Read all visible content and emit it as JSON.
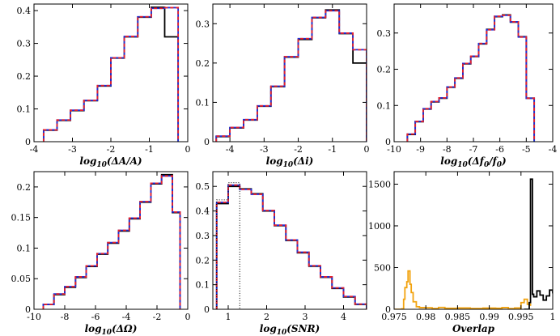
{
  "figure": {
    "description_free": true
  },
  "chart_data": [
    {
      "type": "histogram",
      "xlabel": "log10(ΔA/A)",
      "xlabel_parts": {
        "pre": "log",
        "sub": "10",
        "post": "(ΔA/A)"
      },
      "xlim": [
        -4,
        0
      ],
      "ylim": [
        0,
        0.42
      ],
      "xticks": [
        -4,
        -3,
        -2,
        -1,
        0
      ],
      "xticklabels": [
        "-4",
        "-3",
        "-2",
        "-1",
        "0"
      ],
      "yticks": [
        0,
        0.1,
        0.2,
        0.3,
        0.4
      ],
      "yticklabels": [
        "0",
        "0.1",
        "0.2",
        "0.3",
        "0.4"
      ],
      "series": [
        {
          "name": "black-solid",
          "color": "#000000",
          "dash": "",
          "edges": [
            -3.75,
            -3.4,
            -3.05,
            -2.7,
            -2.35,
            -2.0,
            -1.65,
            -1.3,
            -0.95,
            -0.6,
            -0.25
          ],
          "values": [
            0.035,
            0.065,
            0.095,
            0.125,
            0.17,
            0.255,
            0.32,
            0.38,
            0.41,
            0.32
          ]
        },
        {
          "name": "blue-solid",
          "color": "#1f2fd8",
          "dash": "",
          "edges": [
            -3.75,
            -3.4,
            -3.05,
            -2.7,
            -2.35,
            -2.0,
            -1.65,
            -1.3,
            -0.95,
            -0.6,
            -0.25
          ],
          "values": [
            0.036,
            0.066,
            0.096,
            0.126,
            0.171,
            0.256,
            0.321,
            0.381,
            0.407,
            0.409
          ]
        },
        {
          "name": "red-dashed",
          "color": "#e8202a",
          "dash": "4,3",
          "edges": [
            -3.75,
            -3.4,
            -3.05,
            -2.7,
            -2.35,
            -2.0,
            -1.65,
            -1.3,
            -0.95,
            -0.6,
            -0.25
          ],
          "values": [
            0.036,
            0.066,
            0.096,
            0.126,
            0.171,
            0.256,
            0.321,
            0.381,
            0.407,
            0.409
          ]
        }
      ]
    },
    {
      "type": "histogram",
      "xlabel": "log10(Δi)",
      "xlabel_parts": {
        "pre": "log",
        "sub": "10",
        "post": "(Δi)"
      },
      "xlim": [
        -4.5,
        0
      ],
      "ylim": [
        0,
        0.35
      ],
      "xticks": [
        -4,
        -3,
        -2,
        -1,
        0
      ],
      "xticklabels": [
        "-4",
        "-3",
        "-2",
        "-1",
        "0"
      ],
      "yticks": [
        0,
        0.1,
        0.2,
        0.3
      ],
      "yticklabels": [
        "0",
        "0.1",
        "0.2",
        "0.3"
      ],
      "series": [
        {
          "name": "black-solid",
          "color": "#000000",
          "dash": "",
          "edges": [
            -4.4,
            -4.0,
            -3.6,
            -3.2,
            -2.8,
            -2.4,
            -2.0,
            -1.6,
            -1.2,
            -0.8,
            -0.4,
            0
          ],
          "values": [
            0.013,
            0.035,
            0.055,
            0.09,
            0.14,
            0.215,
            0.26,
            0.315,
            0.335,
            0.275,
            0.2
          ]
        },
        {
          "name": "blue-solid",
          "color": "#1f2fd8",
          "dash": "",
          "edges": [
            -4.4,
            -4.0,
            -3.6,
            -3.2,
            -2.8,
            -2.4,
            -2.0,
            -1.6,
            -1.2,
            -0.8,
            -0.4,
            0
          ],
          "values": [
            0.014,
            0.036,
            0.056,
            0.091,
            0.141,
            0.216,
            0.262,
            0.316,
            0.333,
            0.276,
            0.234
          ]
        },
        {
          "name": "red-dashed",
          "color": "#e8202a",
          "dash": "4,3",
          "edges": [
            -4.4,
            -4.0,
            -3.6,
            -3.2,
            -2.8,
            -2.4,
            -2.0,
            -1.6,
            -1.2,
            -0.8,
            -0.4,
            0
          ],
          "values": [
            0.014,
            0.036,
            0.056,
            0.091,
            0.141,
            0.216,
            0.262,
            0.316,
            0.333,
            0.276,
            0.234
          ]
        }
      ]
    },
    {
      "type": "histogram",
      "xlabel": "log10(Δf0/f0)",
      "xlabel_parts": {
        "pre": "log",
        "sub": "10",
        "post": "(Δf",
        "sub2": "0",
        "post2": "/f",
        "sub3": "0",
        "post3": ")"
      },
      "xlim": [
        -10,
        -4
      ],
      "ylim": [
        0,
        0.38
      ],
      "xticks": [
        -10,
        -9,
        -8,
        -7,
        -6,
        -5,
        -4
      ],
      "xticklabels": [
        "-10",
        "-9",
        "-8",
        "-7",
        "-6",
        "-5",
        "-4"
      ],
      "yticks": [
        0,
        0.1,
        0.2,
        0.3
      ],
      "yticklabels": [
        "0",
        "0.1",
        "0.2",
        "0.3"
      ],
      "series": [
        {
          "name": "black-solid",
          "color": "#000000",
          "dash": "",
          "edges": [
            -9.5,
            -9.2,
            -8.9,
            -8.6,
            -8.3,
            -8.0,
            -7.7,
            -7.4,
            -7.1,
            -6.8,
            -6.5,
            -6.2,
            -5.9,
            -5.6,
            -5.3,
            -5.0,
            -4.7
          ],
          "values": [
            0.02,
            0.055,
            0.09,
            0.11,
            0.12,
            0.15,
            0.175,
            0.215,
            0.235,
            0.27,
            0.31,
            0.345,
            0.35,
            0.33,
            0.29,
            0.12
          ]
        },
        {
          "name": "blue-solid",
          "color": "#1f2fd8",
          "dash": "",
          "edges": [
            -9.5,
            -9.2,
            -8.9,
            -8.6,
            -8.3,
            -8.0,
            -7.7,
            -7.4,
            -7.1,
            -6.8,
            -6.5,
            -6.2,
            -5.9,
            -5.6,
            -5.3,
            -5.0,
            -4.7
          ],
          "values": [
            0.021,
            0.056,
            0.091,
            0.111,
            0.121,
            0.151,
            0.176,
            0.216,
            0.236,
            0.271,
            0.309,
            0.346,
            0.349,
            0.331,
            0.289,
            0.12
          ]
        },
        {
          "name": "red-dashed",
          "color": "#e8202a",
          "dash": "4,3",
          "edges": [
            -9.5,
            -9.2,
            -8.9,
            -8.6,
            -8.3,
            -8.0,
            -7.7,
            -7.4,
            -7.1,
            -6.8,
            -6.5,
            -6.2,
            -5.9,
            -5.6,
            -5.3,
            -5.0,
            -4.7
          ],
          "values": [
            0.021,
            0.056,
            0.091,
            0.111,
            0.121,
            0.151,
            0.176,
            0.216,
            0.236,
            0.271,
            0.309,
            0.346,
            0.349,
            0.331,
            0.289,
            0.12
          ]
        }
      ]
    },
    {
      "type": "histogram",
      "xlabel": "log10(ΔΩ)",
      "xlabel_parts": {
        "pre": "log",
        "sub": "10",
        "post": "(ΔΩ)"
      },
      "xlim": [
        -10,
        0
      ],
      "ylim": [
        0,
        0.225
      ],
      "xticks": [
        -10,
        -8,
        -6,
        -4,
        -2,
        0
      ],
      "xticklabels": [
        "-10",
        "-8",
        "-6",
        "-4",
        "-2",
        "0"
      ],
      "yticks": [
        0,
        0.05,
        0.1,
        0.15,
        0.2
      ],
      "yticklabels": [
        "0",
        "0.05",
        "0.1",
        "0.15",
        "0.2"
      ],
      "series": [
        {
          "name": "black-solid",
          "color": "#000000",
          "dash": "",
          "edges": [
            -9.4,
            -8.7,
            -8.0,
            -7.3,
            -6.6,
            -5.9,
            -5.2,
            -4.5,
            -3.8,
            -3.1,
            -2.4,
            -1.7,
            -1.0,
            -0.5
          ],
          "values": [
            0.008,
            0.024,
            0.036,
            0.052,
            0.07,
            0.09,
            0.108,
            0.128,
            0.148,
            0.175,
            0.205,
            0.22,
            0.158
          ]
        },
        {
          "name": "blue-solid",
          "color": "#1f2fd8",
          "dash": "",
          "edges": [
            -9.4,
            -8.7,
            -8.0,
            -7.3,
            -6.6,
            -5.9,
            -5.2,
            -4.5,
            -3.8,
            -3.1,
            -2.4,
            -1.7,
            -1.0,
            -0.5
          ],
          "values": [
            0.008,
            0.025,
            0.037,
            0.053,
            0.071,
            0.091,
            0.109,
            0.129,
            0.149,
            0.176,
            0.206,
            0.218,
            0.159
          ]
        },
        {
          "name": "red-dashed",
          "color": "#e8202a",
          "dash": "4,3",
          "edges": [
            -9.4,
            -8.7,
            -8.0,
            -7.3,
            -6.6,
            -5.9,
            -5.2,
            -4.5,
            -3.8,
            -3.1,
            -2.4,
            -1.7,
            -1.0,
            -0.5
          ],
          "values": [
            0.008,
            0.025,
            0.037,
            0.053,
            0.071,
            0.091,
            0.109,
            0.129,
            0.149,
            0.176,
            0.206,
            0.218,
            0.159
          ]
        }
      ]
    },
    {
      "type": "histogram",
      "xlabel": "log10(SNR)",
      "xlabel_parts": {
        "pre": "log",
        "sub": "10",
        "post": "(SNR)"
      },
      "xlim": [
        0.6,
        4.6
      ],
      "ylim": [
        0,
        0.56
      ],
      "xticks": [
        1,
        2,
        3,
        4
      ],
      "xticklabels": [
        "1",
        "2",
        "3",
        "4"
      ],
      "yticks": [
        0,
        0.1,
        0.2,
        0.3,
        0.4,
        0.5
      ],
      "yticklabels": [
        "0",
        "0.1",
        "0.2",
        "0.3",
        "0.4",
        "0.5"
      ],
      "series": [
        {
          "name": "black-solid",
          "color": "#000000",
          "dash": "",
          "edges": [
            0.7,
            1.0,
            1.3,
            1.6,
            1.9,
            2.2,
            2.5,
            2.8,
            3.1,
            3.4,
            3.7,
            4.0,
            4.3,
            4.6
          ],
          "values": [
            0.43,
            0.5,
            0.49,
            0.47,
            0.4,
            0.34,
            0.28,
            0.23,
            0.175,
            0.13,
            0.085,
            0.05,
            0.02
          ]
        },
        {
          "name": "blue-solid",
          "color": "#1f2fd8",
          "dash": "",
          "edges": [
            0.7,
            1.0,
            1.3,
            1.6,
            1.9,
            2.2,
            2.5,
            2.8,
            3.1,
            3.4,
            3.7,
            4.0,
            4.3,
            4.6
          ],
          "values": [
            0.435,
            0.505,
            0.488,
            0.468,
            0.402,
            0.342,
            0.282,
            0.232,
            0.177,
            0.132,
            0.087,
            0.052,
            0.021
          ]
        },
        {
          "name": "red-dashed",
          "color": "#e8202a",
          "dash": "4,3",
          "edges": [
            0.7,
            1.0,
            1.3,
            1.6,
            1.9,
            2.2,
            2.5,
            2.8,
            3.1,
            3.4,
            3.7,
            4.0,
            4.3,
            4.6
          ],
          "values": [
            0.435,
            0.505,
            0.488,
            0.468,
            0.402,
            0.342,
            0.282,
            0.232,
            0.177,
            0.132,
            0.087,
            0.052,
            0.021
          ]
        },
        {
          "name": "black-dotted",
          "color": "#000000",
          "dash": "1,2",
          "edges": [
            0.7,
            1.0,
            1.3
          ],
          "values": [
            0.445,
            0.515
          ]
        }
      ]
    },
    {
      "type": "histogram",
      "xlabel": "Overlap",
      "xlim": [
        0.975,
        1.0
      ],
      "ylim": [
        0,
        1650
      ],
      "xticks": [
        0.975,
        0.98,
        0.985,
        0.99,
        0.995,
        1.0
      ],
      "xticklabels": [
        "0.975",
        "0.98",
        "0.985",
        "0.99",
        "0.995",
        "1"
      ],
      "yticks": [
        0,
        500,
        1000,
        1500
      ],
      "yticklabels": [
        "0",
        "500",
        "1000",
        "1500"
      ],
      "series": [
        {
          "name": "orange-solid",
          "color": "#f2a30f",
          "dash": "",
          "x": [
            0.9751,
            0.9762,
            0.9765,
            0.9767,
            0.977,
            0.9772,
            0.9775,
            0.9777,
            0.978,
            0.9785,
            0.979,
            0.98,
            0.981,
            0.982,
            0.983,
            0.985,
            0.987,
            0.989,
            0.991,
            0.992,
            0.993,
            0.994,
            0.995,
            0.9955,
            0.996,
            0.9965
          ],
          "values": [
            0,
            5,
            120,
            260,
            330,
            460,
            300,
            200,
            90,
            30,
            20,
            18,
            10,
            22,
            12,
            15,
            10,
            14,
            12,
            20,
            8,
            15,
            80,
            120,
            60,
            40
          ]
        },
        {
          "name": "black-solid",
          "color": "#000000",
          "dash": "",
          "x": [
            0.9955,
            0.9963,
            0.9965,
            0.9968,
            0.997,
            0.9975,
            0.998,
            0.9985,
            0.999,
            0.9995,
            1.0
          ],
          "values": [
            0,
            80,
            1560,
            180,
            150,
            220,
            170,
            110,
            160,
            230,
            190
          ]
        }
      ]
    }
  ]
}
